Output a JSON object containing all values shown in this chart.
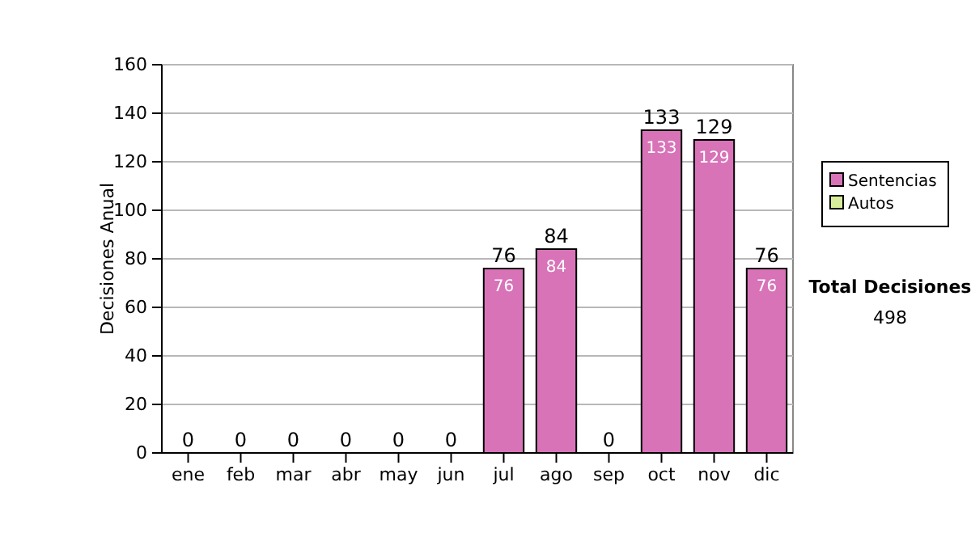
{
  "chart_data": {
    "type": "bar",
    "stacked": true,
    "ylabel": "Decisiones Anual",
    "categories": [
      "ene",
      "feb",
      "mar",
      "abr",
      "may",
      "jun",
      "jul",
      "ago",
      "sep",
      "oct",
      "nov",
      "dic"
    ],
    "series": [
      {
        "name": "Sentencias",
        "color": "#d873b8",
        "values": [
          0,
          0,
          0,
          0,
          0,
          0,
          76,
          84,
          0,
          133,
          129,
          76
        ],
        "value_labels": [
          null,
          null,
          null,
          null,
          null,
          null,
          "76",
          "84",
          null,
          "133",
          "129",
          "76"
        ]
      },
      {
        "name": "Autos",
        "color": "#d8ec9c",
        "values": [
          0,
          0,
          0,
          0,
          0,
          0,
          0,
          0,
          0,
          0,
          0,
          0
        ]
      }
    ],
    "totals": [
      "0",
      "0",
      "0",
      "0",
      "0",
      "0",
      "76",
      "84",
      "0",
      "133",
      "129",
      "76"
    ],
    "ylim": [
      0,
      160
    ],
    "yticks": [
      0,
      20,
      40,
      60,
      80,
      100,
      120,
      140,
      160
    ],
    "grid": "y",
    "legend": "right",
    "annotations": [
      "Total Decisiones",
      "498"
    ]
  }
}
